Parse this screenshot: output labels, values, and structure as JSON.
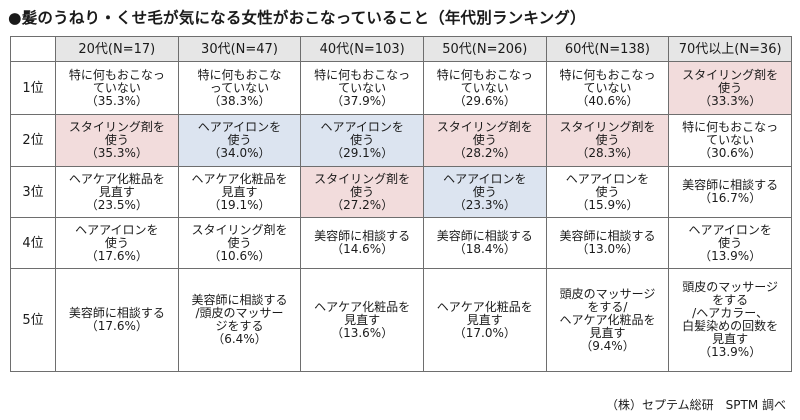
{
  "title": "●髪のうねり・くせ毛が気になる女性がおこなっていること（年代別ランキング）",
  "columns": [
    "20代(N=17)",
    "30代(N=47)",
    "40代(N=103)",
    "50代(N=206)",
    "60代(N=138)",
    "70代以上(N=36)"
  ],
  "rows": [
    {
      "rank": "1位",
      "cells": [
        {
          "text": "特に何もおこなっ\nていない",
          "pct": "（35.3%）",
          "highlight": ""
        },
        {
          "text": "特に何もおこな\nっていない",
          "pct": "（38.3%）",
          "highlight": ""
        },
        {
          "text": "特に何もおこなっ\nていない",
          "pct": "（37.9%）",
          "highlight": ""
        },
        {
          "text": "特に何もおこなっ\nていない",
          "pct": "（29.6%）",
          "highlight": ""
        },
        {
          "text": "特に何もおこなっ\nていない",
          "pct": "（40.6%）",
          "highlight": ""
        },
        {
          "text": "スタイリング剤を\n使う",
          "pct": "（33.3%）",
          "highlight": "pink"
        }
      ]
    },
    {
      "rank": "2位",
      "cells": [
        {
          "text": "スタイリング剤を\n使う",
          "pct": "（35.3%）",
          "highlight": "pink"
        },
        {
          "text": "ヘアアイロンを\n使う",
          "pct": "（34.0%）",
          "highlight": "blue"
        },
        {
          "text": "ヘアアイロンを\n使う",
          "pct": "（29.1%）",
          "highlight": "blue"
        },
        {
          "text": "スタイリング剤を\n使う",
          "pct": "（28.2%）",
          "highlight": "pink"
        },
        {
          "text": "スタイリング剤を\n使う",
          "pct": "（28.3%）",
          "highlight": "pink"
        },
        {
          "text": "特に何もおこなっ\nていない",
          "pct": "（30.6%）",
          "highlight": ""
        }
      ]
    },
    {
      "rank": "3位",
      "cells": [
        {
          "text": "ヘアケア化粧品を\n見直す",
          "pct": "（23.5%）",
          "highlight": ""
        },
        {
          "text": "ヘアケア化粧品を\n見直す",
          "pct": "（19.1%）",
          "highlight": ""
        },
        {
          "text": "スタイリング剤を\n使う",
          "pct": "（27.2%）",
          "highlight": "pink"
        },
        {
          "text": "ヘアアイロンを\n使う",
          "pct": "（23.3%）",
          "highlight": "blue"
        },
        {
          "text": "ヘアアイロンを\n使う",
          "pct": "（15.9%）",
          "highlight": ""
        },
        {
          "text": "美容師に相談する",
          "pct": "（16.7%）",
          "highlight": ""
        }
      ]
    },
    {
      "rank": "4位",
      "cells": [
        {
          "text": "ヘアアイロンを\n使う",
          "pct": "（17.6%）",
          "highlight": ""
        },
        {
          "text": "スタイリング剤を\n使う",
          "pct": "（10.6%）",
          "highlight": ""
        },
        {
          "text": "美容師に相談する",
          "pct": "（14.6%）",
          "highlight": ""
        },
        {
          "text": "美容師に相談する",
          "pct": "（18.4%）",
          "highlight": ""
        },
        {
          "text": "美容師に相談する",
          "pct": "（13.0%）",
          "highlight": ""
        },
        {
          "text": "ヘアアイロンを\n使う",
          "pct": "（13.9%）",
          "highlight": ""
        }
      ]
    },
    {
      "rank": "5位",
      "cells": [
        {
          "text": "美容師に相談する",
          "pct": "（17.6%）",
          "highlight": ""
        },
        {
          "text": "美容師に相談する\n/頭皮のマッサー\nジをする",
          "pct": "（6.4%）",
          "highlight": ""
        },
        {
          "text": "ヘアケア化粧品を\n見直す",
          "pct": "（13.6%）",
          "highlight": ""
        },
        {
          "text": "ヘアケア化粧品を\n見直す",
          "pct": "（17.0%）",
          "highlight": ""
        },
        {
          "text": "頭皮のマッサージ\nをする/\nヘアケア化粧品を\n見直す",
          "pct": "（9.4%）",
          "highlight": ""
        },
        {
          "text": "頭皮のマッサージ\nをする\n/ヘアカラー、\n白髪染めの回数を\n見直す",
          "pct": "（13.9%）",
          "highlight": ""
        }
      ]
    }
  ],
  "source": "（株）セプテム総研　SPTM 調べ"
}
